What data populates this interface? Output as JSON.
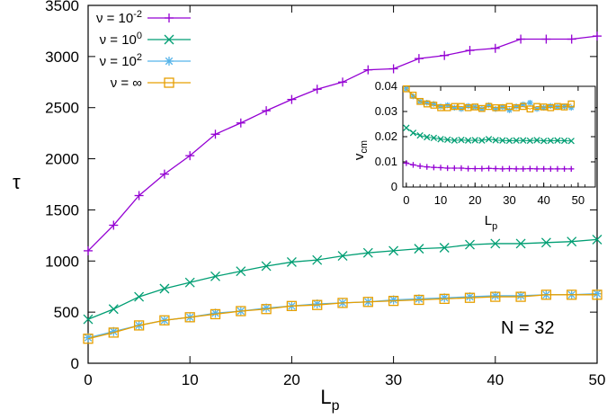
{
  "chart_data": [
    {
      "type": "line",
      "xlabel": "L",
      "xlabel_sub": "p",
      "ylabel": "τ",
      "xlim": [
        0,
        50
      ],
      "ylim": [
        0,
        3500
      ],
      "xticks": [
        "0",
        "10",
        "20",
        "30",
        "40",
        "50"
      ],
      "yticks": [
        "0",
        "500",
        "1000",
        "1500",
        "2000",
        "2500",
        "3000",
        "3500"
      ],
      "xtick_values": [
        0,
        10,
        20,
        30,
        40,
        50
      ],
      "ytick_values": [
        0,
        500,
        1000,
        1500,
        2000,
        2500,
        3000,
        3500
      ],
      "grid": false,
      "legend_position": "top-left",
      "annotation": "N = 32",
      "x": [
        0,
        2.5,
        5,
        7.5,
        10,
        12.5,
        15,
        17.5,
        20,
        22.5,
        25,
        27.5,
        30,
        32.5,
        35,
        37.5,
        40,
        42.5,
        45,
        47.5,
        50
      ],
      "series": [
        {
          "name": "ν = 10",
          "name_sup": "-2",
          "color": "#9400d3",
          "marker": "plus",
          "values": [
            1100,
            1350,
            1640,
            1850,
            2030,
            2240,
            2350,
            2470,
            2580,
            2680,
            2750,
            2870,
            2880,
            2980,
            3010,
            3060,
            3080,
            3170,
            3170,
            3170,
            3200
          ]
        },
        {
          "name": "ν = 10",
          "name_sup": "0",
          "color": "#009e73",
          "marker": "x",
          "values": [
            430,
            530,
            650,
            730,
            790,
            850,
            900,
            950,
            990,
            1010,
            1050,
            1080,
            1100,
            1120,
            1130,
            1160,
            1170,
            1170,
            1180,
            1190,
            1210
          ]
        },
        {
          "name": "ν = 10",
          "name_sup": "2",
          "color": "#56b4e9",
          "marker": "star",
          "values": [
            250,
            310,
            370,
            420,
            450,
            490,
            510,
            540,
            560,
            580,
            590,
            600,
            620,
            630,
            640,
            650,
            660,
            660,
            670,
            670,
            680
          ]
        },
        {
          "name": "ν = ∞",
          "name_sup": "",
          "color": "#e69f00",
          "marker": "square",
          "values": [
            240,
            300,
            370,
            420,
            450,
            480,
            510,
            530,
            560,
            570,
            590,
            600,
            610,
            620,
            630,
            640,
            650,
            650,
            670,
            670,
            670
          ]
        }
      ]
    },
    {
      "type": "line",
      "ylabel": "v",
      "ylabel_sub": "cm",
      "xlabel": "L",
      "xlabel_sub": "p",
      "xlim": [
        -1,
        55
      ],
      "ylim": [
        0,
        0.04
      ],
      "xticks": [
        "0",
        "10",
        "20",
        "30",
        "40",
        "50"
      ],
      "yticks": [
        "0",
        "0.01",
        "0.02",
        "0.03",
        "0.04"
      ],
      "xtick_values": [
        0,
        10,
        20,
        30,
        40,
        50
      ],
      "ytick_values": [
        0,
        0.01,
        0.02,
        0.03,
        0.04
      ],
      "grid": false,
      "x": [
        0,
        2,
        4,
        6,
        8,
        10,
        12,
        14,
        16,
        18,
        20,
        22,
        24,
        26,
        28,
        30,
        32,
        34,
        36,
        38,
        40,
        42,
        44,
        46,
        48
      ],
      "series": [
        {
          "color": "#9400d3",
          "marker": "plus",
          "values": [
            0.0095,
            0.0088,
            0.0083,
            0.008,
            0.0078,
            0.0077,
            0.0075,
            0.0075,
            0.0075,
            0.0073,
            0.0073,
            0.0073,
            0.0074,
            0.0073,
            0.0072,
            0.0073,
            0.0072,
            0.0072,
            0.0073,
            0.0072,
            0.0072,
            0.0072,
            0.0072,
            0.0072,
            0.0072
          ]
        },
        {
          "color": "#009e73",
          "marker": "x",
          "values": [
            0.0235,
            0.0215,
            0.0205,
            0.0198,
            0.0195,
            0.019,
            0.0188,
            0.0185,
            0.0187,
            0.0185,
            0.0186,
            0.0185,
            0.019,
            0.0186,
            0.0185,
            0.0184,
            0.0185,
            0.0185,
            0.0184,
            0.0186,
            0.0183,
            0.0184,
            0.0185,
            0.0184,
            0.0183
          ]
        },
        {
          "color": "#56b4e9",
          "marker": "star",
          "values": [
            0.039,
            0.036,
            0.034,
            0.0335,
            0.033,
            0.032,
            0.0325,
            0.0315,
            0.031,
            0.0322,
            0.0318,
            0.031,
            0.0325,
            0.031,
            0.0318,
            0.0305,
            0.032,
            0.0328,
            0.0335,
            0.031,
            0.0315,
            0.0322,
            0.0318,
            0.032,
            0.0315
          ]
        },
        {
          "color": "#e69f00",
          "marker": "square",
          "values": [
            0.039,
            0.0365,
            0.034,
            0.033,
            0.0325,
            0.0315,
            0.0315,
            0.032,
            0.032,
            0.0315,
            0.0318,
            0.0312,
            0.032,
            0.0315,
            0.0315,
            0.032,
            0.0315,
            0.032,
            0.031,
            0.032,
            0.0318,
            0.0315,
            0.032,
            0.0318,
            0.033
          ]
        }
      ]
    }
  ]
}
